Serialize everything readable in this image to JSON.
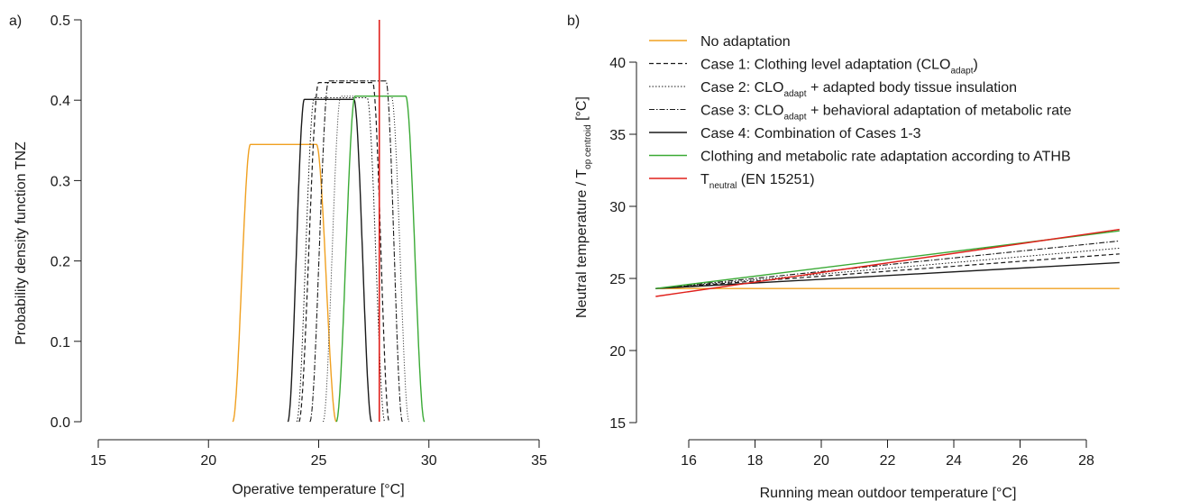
{
  "colors": {
    "orange": "#f0a020",
    "green": "#3aaa35",
    "red": "#e0201b",
    "black": "#1a1a1a"
  },
  "chart_data": [
    {
      "panel": "a)",
      "type": "line",
      "xlabel": "Operative temperature [°C]",
      "ylabel": "Probability density function TNZ",
      "xlim": [
        15,
        35
      ],
      "ylim": [
        0,
        0.5
      ],
      "xticks": [
        "15",
        "20",
        "25",
        "30",
        "35"
      ],
      "yticks": [
        "0.0",
        "0.1",
        "0.2",
        "0.3",
        "0.4",
        "0.5"
      ],
      "vline": {
        "x": 27.75,
        "color": "red"
      },
      "series": [
        {
          "style": "orange",
          "color": "orange",
          "start": 21.1,
          "rise": 0.8,
          "end": 25.8,
          "fall": 0.9,
          "peak": 0.345
        },
        {
          "style": "solid",
          "color": "black",
          "start": 23.6,
          "rise": 0.75,
          "end": 27.4,
          "fall": 0.8,
          "peak": 0.401
        },
        {
          "style": "dotted",
          "color": "black",
          "start": 24.0,
          "rise": 0.8,
          "end": 28.0,
          "fall": 0.8,
          "peak": 0.403
        },
        {
          "style": "dashed",
          "color": "black",
          "start": 24.1,
          "rise": 0.9,
          "end": 28.2,
          "fall": 0.75,
          "peak": 0.422
        },
        {
          "style": "dashdot",
          "color": "black",
          "start": 24.6,
          "rise": 0.85,
          "end": 28.8,
          "fall": 0.75,
          "peak": 0.424
        },
        {
          "style": "dotted2",
          "color": "black",
          "start": 25.2,
          "rise": 0.8,
          "end": 29.1,
          "fall": 0.8,
          "peak": 0.405
        },
        {
          "style": "green",
          "color": "green",
          "start": 25.8,
          "rise": 0.85,
          "end": 29.8,
          "fall": 0.85,
          "peak": 0.405
        }
      ]
    },
    {
      "panel": "b)",
      "type": "line",
      "xlabel": "Running mean outdoor temperature [°C]",
      "ylabel_main": "Neutral  temperature  / T",
      "ylabel_sub": "op centroid",
      "ylabel_end": " [°C]",
      "xlim": [
        15,
        29
      ],
      "ylim": [
        15,
        40
      ],
      "xticks": [
        "16",
        "18",
        "20",
        "22",
        "24",
        "26",
        "28"
      ],
      "yticks": [
        "15",
        "20",
        "25",
        "30",
        "35",
        "40"
      ],
      "series": [
        {
          "style": "orange",
          "color": "orange",
          "x": [
            15,
            29
          ],
          "y": [
            24.3,
            24.3
          ]
        },
        {
          "style": "dashed",
          "color": "black",
          "x": [
            15,
            29
          ],
          "y": [
            24.3,
            26.7
          ]
        },
        {
          "style": "dotted",
          "color": "black",
          "x": [
            15,
            29
          ],
          "y": [
            24.3,
            27.1
          ]
        },
        {
          "style": "dashdot",
          "color": "black",
          "x": [
            15,
            29
          ],
          "y": [
            24.3,
            27.6
          ]
        },
        {
          "style": "solid",
          "color": "black",
          "x": [
            15,
            29
          ],
          "y": [
            24.3,
            26.1
          ]
        },
        {
          "style": "green",
          "color": "green",
          "x": [
            15,
            29
          ],
          "y": [
            24.3,
            28.3
          ]
        },
        {
          "style": "red",
          "color": "red",
          "x": [
            15,
            29
          ],
          "y": [
            23.75,
            28.4
          ]
        }
      ],
      "legend": [
        {
          "style": "orange",
          "text": "No adaptation"
        },
        {
          "style": "dashed",
          "text": "Case 1: Clothing level adaptation (CLO",
          "sub": "adapt",
          "tail": ")"
        },
        {
          "style": "dotted",
          "text": "Case 2: CLO",
          "sub": "adapt",
          "tail": " + adapted body tissue insulation"
        },
        {
          "style": "dashdot",
          "text": "Case 3: CLO",
          "sub": "adapt",
          "tail": " + behavioral adaptation of metabolic rate"
        },
        {
          "style": "solid",
          "text": "Case 4: Combination of Cases 1-3"
        },
        {
          "style": "green",
          "text": "Clothing and metabolic rate adaptation according to ATHB"
        },
        {
          "style": "red",
          "text": "T",
          "sub": "neutral",
          "tail": " (EN 15251)"
        }
      ]
    }
  ]
}
